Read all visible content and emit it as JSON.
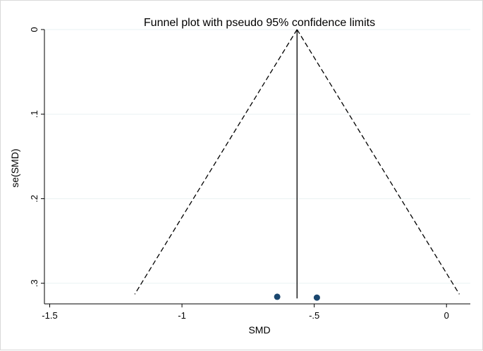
{
  "chart_data": {
    "type": "scatter",
    "title": "Funnel plot with pseudo 95% confidence limits",
    "xlabel": "SMD",
    "ylabel": "se(SMD)",
    "x_ticks": [
      -1.5,
      -1,
      -0.5,
      0
    ],
    "x_tick_labels": [
      "-1.5",
      "-1",
      "-.5",
      "0"
    ],
    "y_ticks": [
      0,
      0.1,
      0.2,
      0.3
    ],
    "y_tick_labels": [
      "0",
      ".1",
      ".2",
      ".3"
    ],
    "xlim": [
      -1.52,
      0.09
    ],
    "ylim": [
      0,
      0.3244
    ],
    "y_reversed": true,
    "grid": true,
    "pooled_estimate": -0.565,
    "pseudo_ci_se_max": 0.313,
    "points": [
      {
        "x": -0.64,
        "y": 0.316
      },
      {
        "x": -0.49,
        "y": 0.317
      }
    ],
    "colors": {
      "points": "#1a476f",
      "grid": "#eaf2f3",
      "lines": "#000000"
    }
  }
}
